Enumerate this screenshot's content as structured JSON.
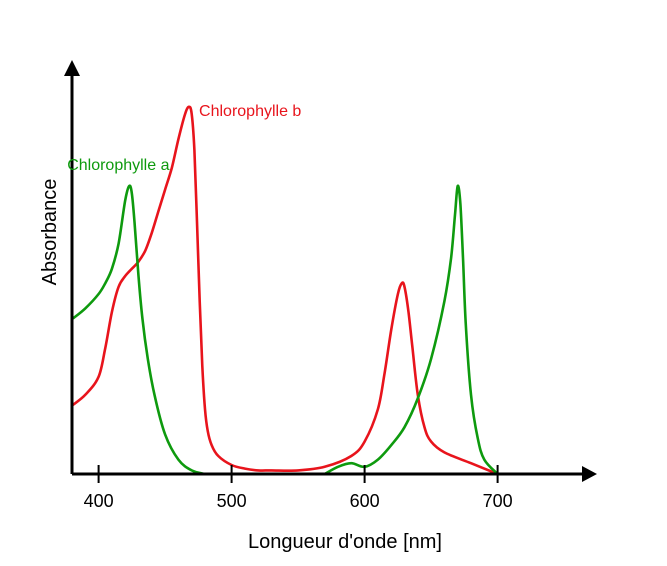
{
  "chart_data": {
    "type": "line",
    "title": "",
    "xlabel": "Longueur d'onde [nm]",
    "ylabel": "Absorbance",
    "xlim": [
      380,
      715
    ],
    "ylim": [
      0,
      1
    ],
    "x_ticks": [
      400,
      500,
      600,
      700
    ],
    "grid": false,
    "legend": "inline labels",
    "series": [
      {
        "name": "Chlorophylle b",
        "color": "#e8141c",
        "x": [
          380,
          390,
          400,
          405,
          410,
          415,
          420,
          425,
          430,
          435,
          440,
          445,
          450,
          455,
          460,
          465,
          468,
          470,
          472,
          474,
          476,
          478,
          480,
          482,
          485,
          490,
          500,
          510,
          520,
          530,
          550,
          570,
          590,
          600,
          610,
          615,
          620,
          625,
          628,
          630,
          633,
          636,
          640,
          645,
          650,
          660,
          680,
          700
        ],
        "y": [
          0.19,
          0.22,
          0.27,
          0.35,
          0.45,
          0.52,
          0.55,
          0.57,
          0.59,
          0.62,
          0.67,
          0.73,
          0.79,
          0.85,
          0.93,
          1.0,
          1.02,
          1.0,
          0.9,
          0.7,
          0.48,
          0.3,
          0.18,
          0.12,
          0.08,
          0.05,
          0.025,
          0.015,
          0.01,
          0.01,
          0.01,
          0.02,
          0.05,
          0.09,
          0.18,
          0.28,
          0.4,
          0.5,
          0.53,
          0.52,
          0.45,
          0.35,
          0.22,
          0.13,
          0.09,
          0.06,
          0.03,
          0.0
        ]
      },
      {
        "name": "Chlorophylle a",
        "color": "#0e9a0e",
        "x": [
          380,
          390,
          400,
          405,
          410,
          415,
          420,
          423,
          425,
          427,
          430,
          433,
          437,
          442,
          450,
          460,
          470,
          480,
          570,
          580,
          590,
          600,
          610,
          620,
          630,
          640,
          650,
          660,
          665,
          668,
          670,
          672,
          674,
          676,
          680,
          685,
          690,
          700
        ],
        "y": [
          0.43,
          0.46,
          0.5,
          0.53,
          0.57,
          0.64,
          0.76,
          0.8,
          0.78,
          0.7,
          0.55,
          0.43,
          0.32,
          0.22,
          0.11,
          0.04,
          0.01,
          0.0,
          0.0,
          0.02,
          0.03,
          0.02,
          0.04,
          0.08,
          0.13,
          0.21,
          0.32,
          0.48,
          0.6,
          0.72,
          0.8,
          0.75,
          0.6,
          0.42,
          0.22,
          0.1,
          0.04,
          0.0
        ]
      }
    ]
  }
}
